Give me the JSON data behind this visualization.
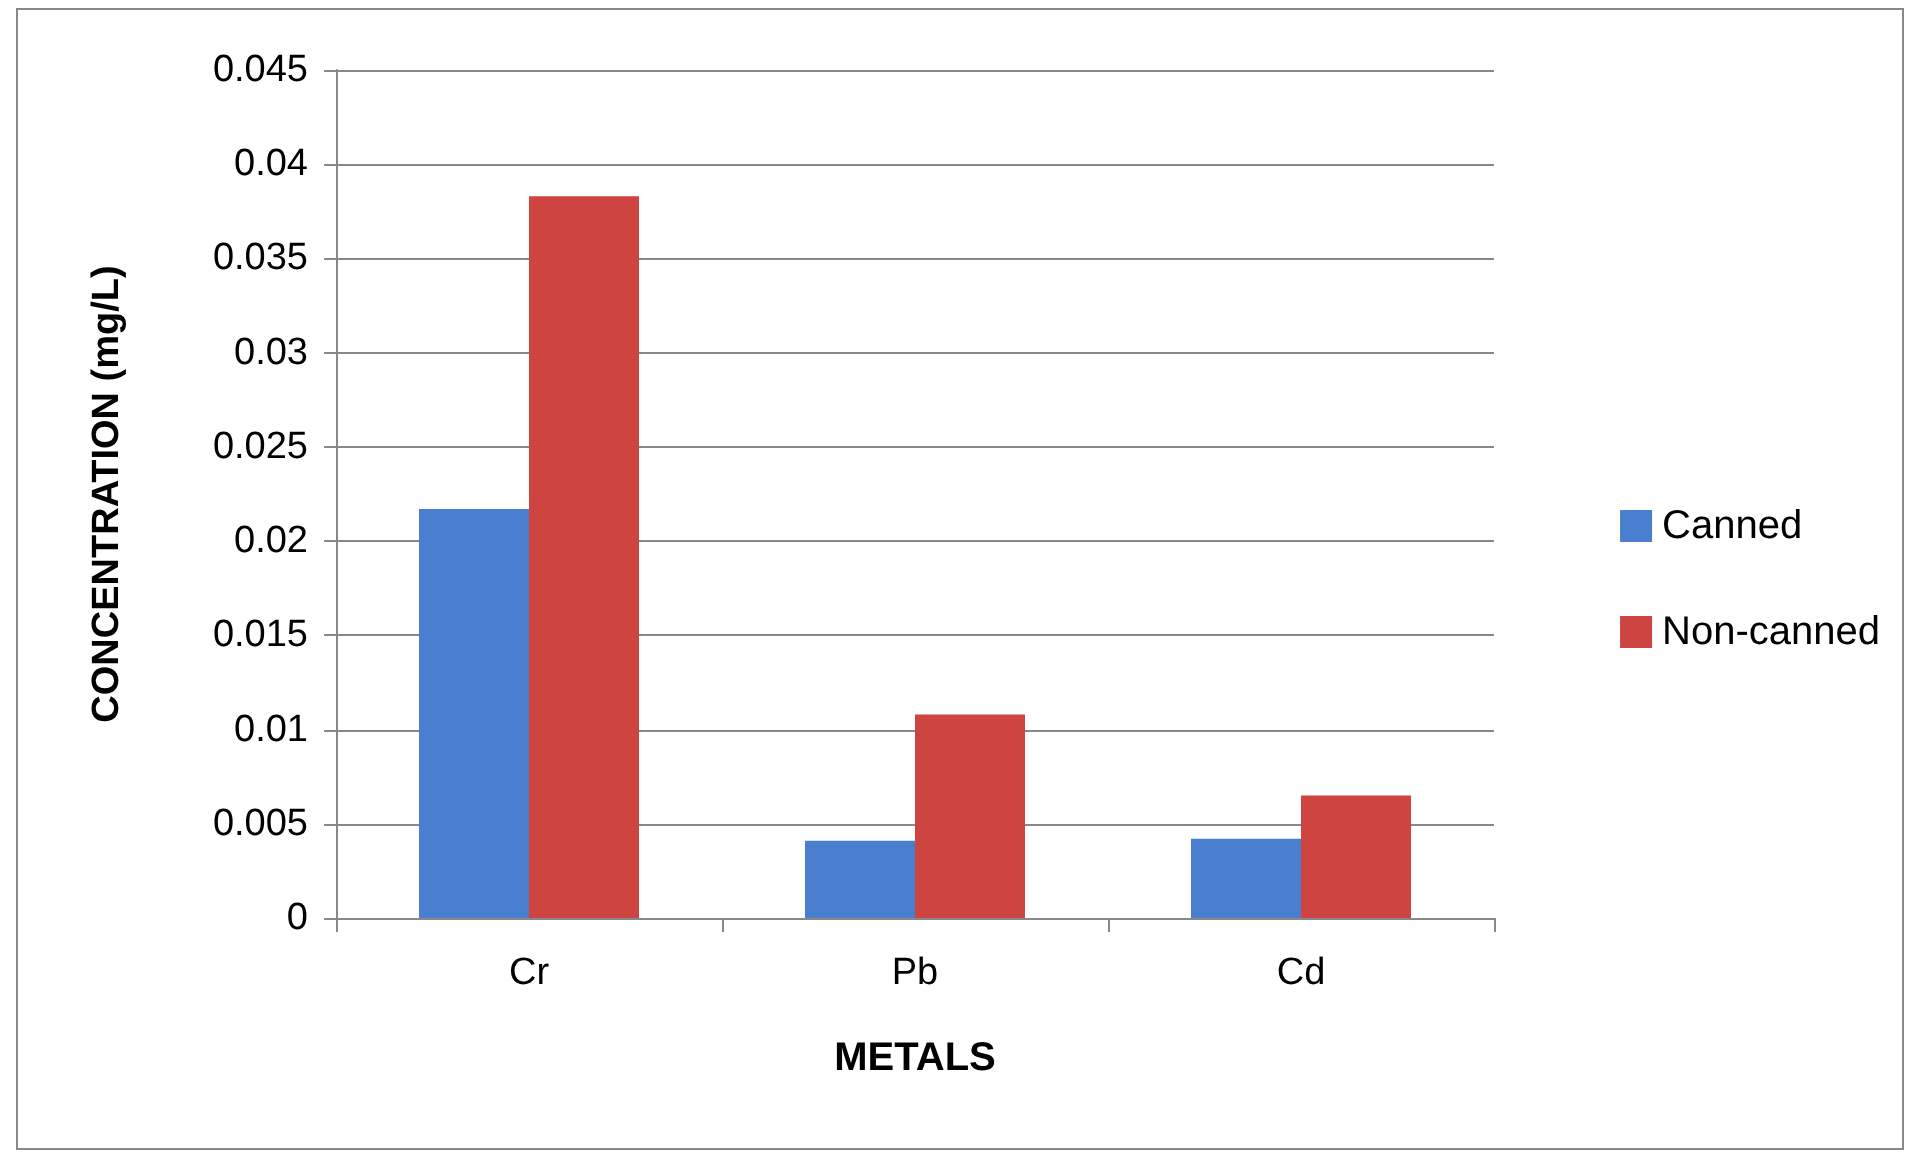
{
  "chart_data": {
    "type": "bar",
    "xlabel": "METALS",
    "ylabel": "CONCENTRATION (mg/L)",
    "categories": [
      "Cr",
      "Pb",
      "Cd"
    ],
    "series": [
      {
        "name": "Canned",
        "color": "#4a7fcf",
        "values": [
          0.0217,
          0.0041,
          0.0042
        ]
      },
      {
        "name": "Non-canned",
        "color": "#cd4441",
        "values": [
          0.0383,
          0.0108,
          0.0065
        ]
      }
    ],
    "ylim": [
      0,
      0.045
    ],
    "yticks": [
      0,
      0.005,
      0.01,
      0.015,
      0.02,
      0.025,
      0.03,
      0.035,
      0.04,
      0.045
    ],
    "grid": "y",
    "legend": "right"
  }
}
